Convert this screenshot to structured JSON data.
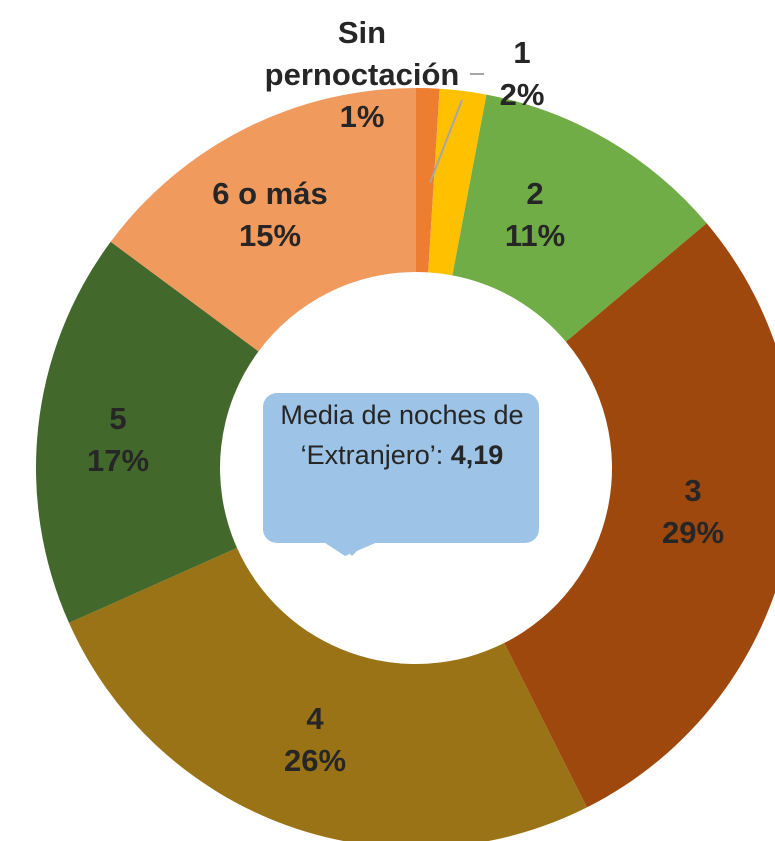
{
  "chart_data": {
    "type": "donut",
    "categories": [
      "Sin pernoctación",
      "1",
      "2",
      "3",
      "4",
      "5",
      "6 o más"
    ],
    "values": [
      1,
      2,
      11,
      29,
      26,
      17,
      15
    ],
    "value_labels": [
      "1%",
      "2%",
      "11%",
      "29%",
      "26%",
      "17%",
      "15%"
    ],
    "colors": [
      "#ed7d31",
      "#ffc000",
      "#70ad47",
      "#9e480e",
      "#997316",
      "#43682b",
      "#f19a5e"
    ],
    "annotation": {
      "text": "Media de noches de ‘Extranjero’:",
      "value_label": "4,19"
    }
  }
}
